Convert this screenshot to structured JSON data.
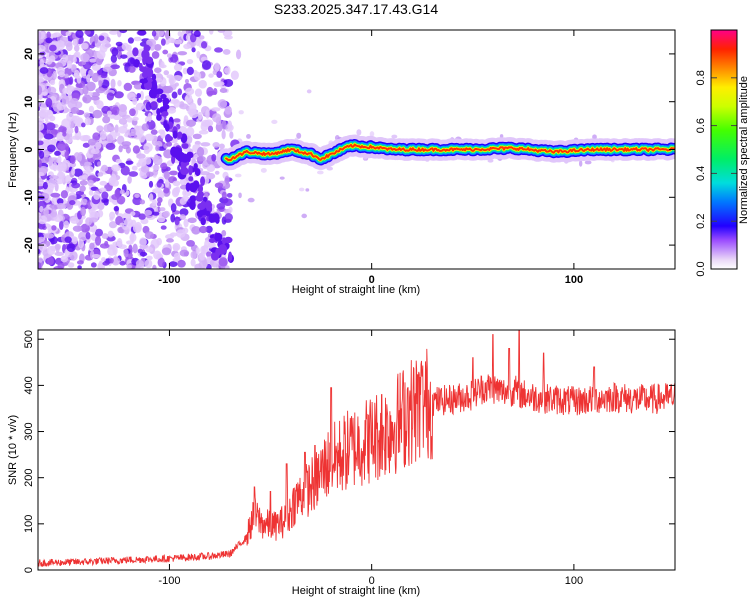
{
  "title": "S233.2025.347.17.43.G14",
  "chart_data": [
    {
      "type": "heatmap",
      "name": "spectrogram",
      "xlabel": "Height of straight line (km)",
      "ylabel": "Frequency (Hz)",
      "xlim": [
        -165,
        150
      ],
      "ylim": [
        -25,
        25
      ],
      "x_ticks": [
        -100,
        0,
        100
      ],
      "y_ticks": [
        -20,
        -10,
        0,
        10,
        20
      ],
      "colorbar": {
        "label": "Normalized spectral amplitude",
        "range": [
          0,
          1
        ],
        "ticks": [
          0.0,
          0.2,
          0.4,
          0.6,
          0.8
        ]
      },
      "ridge": {
        "description_x": [
          -70,
          -62,
          -50,
          -40,
          -30,
          -25,
          -15,
          -10,
          0,
          10,
          30,
          50,
          70,
          90,
          110,
          130,
          150
        ],
        "freq_hz": [
          -2,
          -0.5,
          -1,
          0,
          -1,
          -2,
          0,
          0.8,
          0.5,
          0,
          0,
          0,
          0.3,
          -0.5,
          0,
          0,
          0
        ]
      }
    },
    {
      "type": "line",
      "name": "snr",
      "xlabel": "Height of straight line (km)",
      "ylabel": "SNR (10 * v/v)",
      "xlim": [
        -165,
        150
      ],
      "ylim": [
        0,
        520
      ],
      "x_ticks": [
        -100,
        0,
        100
      ],
      "y_ticks": [
        0,
        100,
        200,
        300,
        400,
        500
      ],
      "series": [
        {
          "name": "SNR",
          "color": "#ee3333",
          "x": [
            -165,
            -140,
            -120,
            -100,
            -80,
            -70,
            -62,
            -58,
            -54,
            -48,
            -42,
            -38,
            -33,
            -28,
            -22,
            -18,
            -10,
            0,
            10,
            18,
            25,
            30,
            40,
            50,
            55,
            60,
            65,
            70,
            75,
            80,
            90,
            100,
            110,
            120,
            130,
            140,
            150
          ],
          "y": [
            15,
            18,
            22,
            25,
            30,
            35,
            70,
            120,
            100,
            95,
            110,
            150,
            170,
            190,
            230,
            240,
            265,
            285,
            310,
            340,
            360,
            365,
            370,
            380,
            395,
            395,
            385,
            390,
            380,
            375,
            370,
            365,
            370,
            375,
            370,
            370,
            375
          ],
          "spikes": [
            [
              -58,
              180
            ],
            [
              -50,
              170
            ],
            [
              -42,
              230
            ],
            [
              -33,
              255
            ],
            [
              -28,
              270
            ],
            [
              -20,
              395
            ],
            [
              5,
              380
            ],
            [
              18,
              395
            ],
            [
              25,
              420
            ],
            [
              50,
              460
            ],
            [
              60,
              510
            ],
            [
              68,
              480
            ],
            [
              73,
              520
            ],
            [
              85,
              470
            ],
            [
              110,
              440
            ]
          ]
        }
      ]
    }
  ]
}
